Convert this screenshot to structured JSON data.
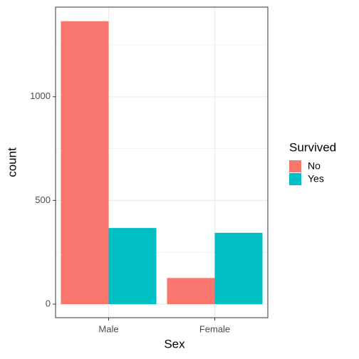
{
  "chart_data": {
    "type": "bar",
    "x_label": "Sex",
    "y_label": "count",
    "categories": [
      "Male",
      "Female"
    ],
    "legend_title": "Survived",
    "series": [
      {
        "name": "No",
        "color": "#f8766d",
        "values": [
          1364,
          126
        ]
      },
      {
        "name": "Yes",
        "color": "#00bfc4",
        "values": [
          367,
          344
        ]
      }
    ],
    "ylim": [
      -65.3,
      1432
    ],
    "yticks": [
      0,
      500,
      1000
    ],
    "minor_yticks": [
      250,
      750,
      1250
    ],
    "grid": true,
    "legend_position": "right"
  }
}
